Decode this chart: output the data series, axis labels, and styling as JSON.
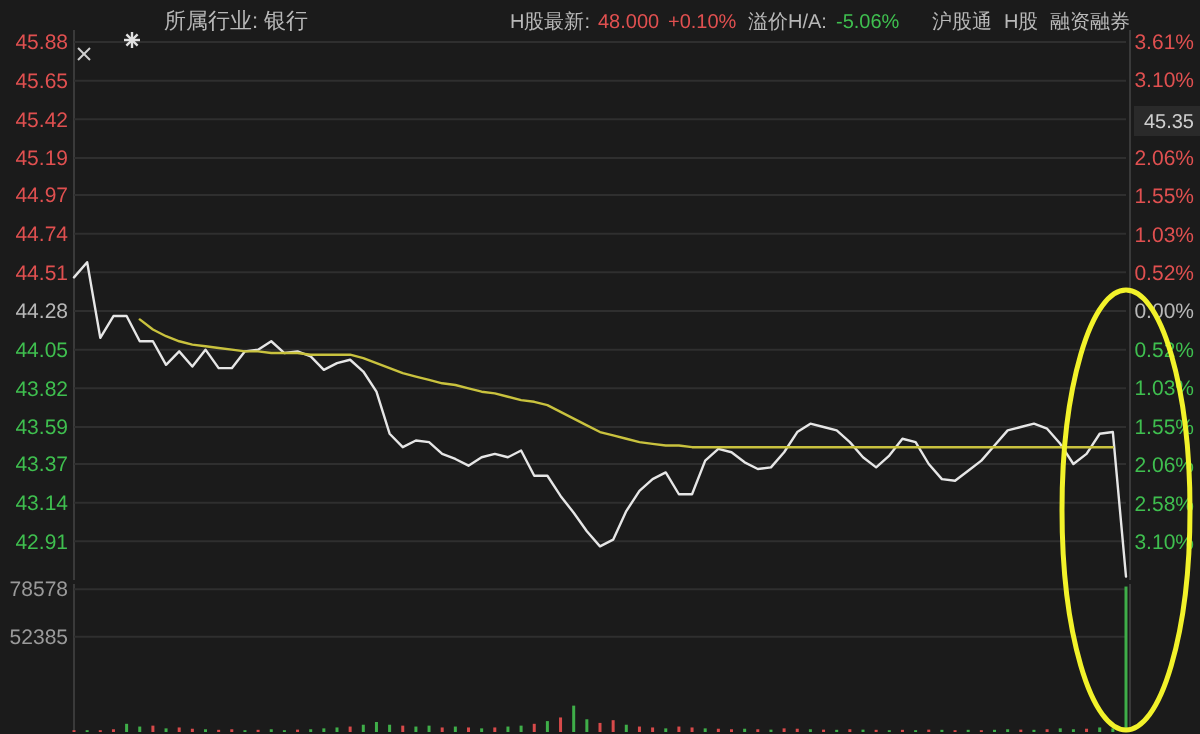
{
  "chart_data": [
    {
      "type": "line",
      "subtitle": "所属行业: 银行",
      "annotations": [
        "H股最新:",
        "48.000",
        "+0.10%",
        "溢价H/A:",
        "-5.06%",
        "沪股通",
        "H股",
        "融资融券",
        "45.35"
      ],
      "categories": [
        null,
        null,
        null,
        null,
        null,
        null,
        null,
        null,
        null,
        null,
        null,
        null,
        null,
        null,
        null,
        null,
        null,
        null,
        null,
        null,
        null,
        null,
        null,
        null,
        null,
        null,
        null,
        null,
        null,
        null,
        null,
        null,
        null,
        null,
        null,
        null,
        null,
        null,
        null,
        null,
        null,
        null,
        null,
        null,
        null,
        null,
        null,
        null,
        null,
        null,
        null,
        null,
        null,
        null,
        null,
        null,
        null,
        null,
        null,
        null,
        null,
        null,
        null,
        null,
        null,
        null,
        null,
        null,
        null,
        null,
        null,
        null,
        null,
        null,
        null,
        null,
        null,
        null,
        null,
        null,
        null
      ],
      "ylim": [
        42.68,
        45.88
      ],
      "yticks": [
        45.88,
        45.65,
        45.42,
        45.19,
        44.97,
        44.74,
        44.51,
        44.28,
        44.05,
        43.82,
        43.59,
        43.37,
        43.14,
        42.91
      ],
      "y2lim": [
        -3.61,
        3.61
      ],
      "y2ticks": [
        {
          "value": 3.61,
          "label": "3.61%"
        },
        {
          "value": 3.1,
          "label": "3.10%"
        },
        {
          "value": 2.06,
          "label": "2.06%"
        },
        {
          "value": 1.55,
          "label": "1.55%"
        },
        {
          "value": 1.03,
          "label": "1.03%"
        },
        {
          "value": 0.52,
          "label": "0.52%"
        },
        {
          "value": 0,
          "label": "0.00%"
        },
        {
          "value": -0.52,
          "label": "0.52%"
        },
        {
          "value": -1.03,
          "label": "1.03%"
        },
        {
          "value": -1.55,
          "label": "1.55%"
        },
        {
          "value": -2.06,
          "label": "2.06%"
        },
        {
          "value": -2.58,
          "label": "2.58%"
        },
        {
          "value": -3.1,
          "label": "3.10%"
        }
      ],
      "grid": "y",
      "tick_labels": "y",
      "series": [
        {
          "color": "#e6e6e6",
          "values": [
            44.48,
            44.57,
            44.12,
            44.25,
            44.25,
            44.1,
            44.1,
            43.96,
            44.04,
            43.95,
            44.05,
            43.94,
            43.94,
            44.04,
            44.05,
            44.1,
            44.03,
            44.04,
            44.01,
            43.93,
            43.97,
            43.99,
            43.92,
            43.8,
            43.55,
            43.47,
            43.51,
            43.5,
            43.43,
            43.4,
            43.36,
            43.41,
            43.43,
            43.41,
            43.45,
            43.3,
            43.3,
            43.18,
            43.08,
            42.97,
            42.88,
            42.92,
            43.09,
            43.21,
            43.28,
            43.32,
            43.19,
            43.19,
            43.39,
            43.46,
            43.44,
            43.38,
            43.34,
            43.35,
            43.44,
            43.56,
            43.61,
            43.59,
            43.57,
            43.5,
            43.41,
            43.35,
            43.42,
            43.52,
            43.5,
            43.37,
            43.28,
            43.27,
            43.33,
            43.39,
            43.48,
            43.57,
            43.59,
            43.61,
            43.58,
            43.49,
            43.37,
            43.43,
            43.55,
            43.56,
            42.7
          ]
        },
        {
          "color": "#c9c23e",
          "values": [
            null,
            null,
            null,
            null,
            null,
            44.23,
            44.17,
            44.13,
            44.1,
            44.08,
            44.07,
            44.06,
            44.05,
            44.04,
            44.04,
            44.03,
            44.03,
            44.03,
            44.02,
            44.02,
            44.02,
            44.02,
            44.0,
            43.97,
            43.94,
            43.91,
            43.89,
            43.87,
            43.85,
            43.84,
            43.82,
            43.8,
            43.79,
            43.77,
            43.75,
            43.74,
            43.72,
            43.68,
            43.64,
            43.6,
            43.56,
            43.54,
            43.52,
            43.5,
            43.49,
            43.48,
            43.48,
            43.47,
            43.47,
            43.47,
            43.47,
            43.47,
            43.47,
            43.47,
            43.47,
            43.47,
            43.47,
            43.47,
            43.47,
            43.47,
            43.47,
            43.47,
            43.47,
            43.47,
            43.47,
            43.47,
            43.47,
            43.47,
            43.47,
            43.47,
            43.47,
            43.47,
            43.47,
            43.47,
            43.47,
            43.47,
            43.47,
            43.47,
            43.47,
            43.47,
            null
          ]
        }
      ]
    },
    {
      "type": "bar",
      "categories": [
        null,
        null,
        null,
        null,
        null,
        null,
        null,
        null,
        null,
        null,
        null,
        null,
        null,
        null,
        null,
        null,
        null,
        null,
        null,
        null,
        null,
        null,
        null,
        null,
        null,
        null,
        null,
        null,
        null,
        null,
        null,
        null,
        null,
        null,
        null,
        null,
        null,
        null,
        null,
        null,
        null,
        null,
        null,
        null,
        null,
        null,
        null,
        null,
        null,
        null,
        null,
        null,
        null,
        null,
        null,
        null,
        null,
        null,
        null,
        null,
        null,
        null,
        null,
        null,
        null,
        null,
        null,
        null,
        null,
        null,
        null,
        null,
        null,
        null,
        null,
        null,
        null,
        null,
        null,
        null,
        null
      ],
      "ylim": [
        0,
        81400
      ],
      "yticks": [
        52385,
        78578
      ],
      "grid": "y",
      "tick_labels": "y",
      "values": [
        1000,
        1000,
        1000,
        1500,
        4500,
        3000,
        3500,
        2000,
        2500,
        1800,
        1500,
        1200,
        1500,
        1000,
        1200,
        1500,
        1000,
        1300,
        1500,
        2000,
        2500,
        3000,
        4000,
        5500,
        4000,
        3500,
        3000,
        3500,
        2500,
        3000,
        2500,
        2000,
        2500,
        3000,
        3500,
        4500,
        6000,
        8000,
        14500,
        7000,
        5000,
        6500,
        4000,
        3000,
        2500,
        2000,
        3000,
        2500,
        2000,
        1800,
        1500,
        1800,
        1500,
        1300,
        2000,
        1800,
        1500,
        1300,
        1200,
        1500,
        1300,
        1200,
        1000,
        1200,
        1000,
        1300,
        1200,
        1000,
        1200,
        1000,
        1200,
        1500,
        1300,
        1200,
        1500,
        2000,
        1500,
        1800,
        2500,
        2000,
        80000
      ],
      "colors": [
        "#d84a4a",
        "#3fae49",
        "#d84a4a",
        "#d84a4a",
        "#3fae49",
        "#3fae49",
        "#d84a4a",
        "#3fae49",
        "#d84a4a",
        "#d84a4a",
        "#3fae49",
        "#d84a4a",
        "#d84a4a",
        "#3fae49",
        "#d84a4a",
        "#3fae49",
        "#3fae49",
        "#d84a4a",
        "#3fae49",
        "#3fae49",
        "#3fae49",
        "#d84a4a",
        "#3fae49",
        "#3fae49",
        "#3fae49",
        "#d84a4a",
        "#3fae49",
        "#3fae49",
        "#d84a4a",
        "#3fae49",
        "#d84a4a",
        "#3fae49",
        "#d84a4a",
        "#3fae49",
        "#3fae49",
        "#d84a4a",
        "#3fae49",
        "#d84a4a",
        "#3fae49",
        "#3fae49",
        "#d84a4a",
        "#d84a4a",
        "#3fae49",
        "#d84a4a",
        "#d84a4a",
        "#3fae49",
        "#d84a4a",
        "#d84a4a",
        "#3fae49",
        "#d84a4a",
        "#d84a4a",
        "#3fae49",
        "#d84a4a",
        "#3fae49",
        "#d84a4a",
        "#d84a4a",
        "#3fae49",
        "#d84a4a",
        "#3fae49",
        "#d84a4a",
        "#3fae49",
        "#d84a4a",
        "#3fae49",
        "#d84a4a",
        "#3fae49",
        "#d84a4a",
        "#3fae49",
        "#d84a4a",
        "#3fae49",
        "#d84a4a",
        "#3fae49",
        "#3fae49",
        "#d84a4a",
        "#3fae49",
        "#d84a4a",
        "#3fae49",
        "#3fae49",
        "#d84a4a",
        "#3fae49",
        "#3fae49",
        "#3fae49"
      ]
    }
  ]
}
